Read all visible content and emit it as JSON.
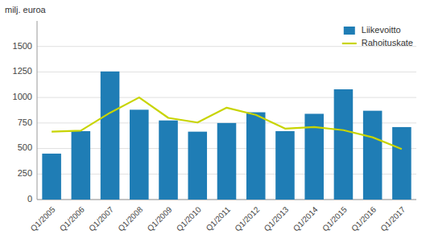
{
  "chart_data": {
    "type": "bar",
    "y_label": "milj. euroa",
    "categories": [
      "Q1/2005",
      "Q1/2006",
      "Q1/2007",
      "Q1/2008",
      "Q1/2009",
      "Q1/2010",
      "Q1/2011",
      "Q1/2012",
      "Q1/2013",
      "Q1/2014",
      "Q1/2015",
      "Q1/2016",
      "Q1/2017"
    ],
    "series": [
      {
        "name": "Liikevoitto",
        "type": "bar",
        "color": "#1f7db5",
        "values": [
          450,
          670,
          1255,
          880,
          775,
          665,
          750,
          855,
          670,
          840,
          1080,
          870,
          710
        ]
      },
      {
        "name": "Rahoituskate",
        "type": "line",
        "color": "#c8d400",
        "values": [
          665,
          675,
          850,
          1000,
          800,
          755,
          900,
          830,
          695,
          710,
          680,
          610,
          495
        ]
      }
    ],
    "ylim": [
      0,
      1750
    ],
    "yticks": [
      0,
      250,
      500,
      750,
      1000,
      1250,
      1500
    ],
    "grid": true,
    "legend": "top-right"
  }
}
